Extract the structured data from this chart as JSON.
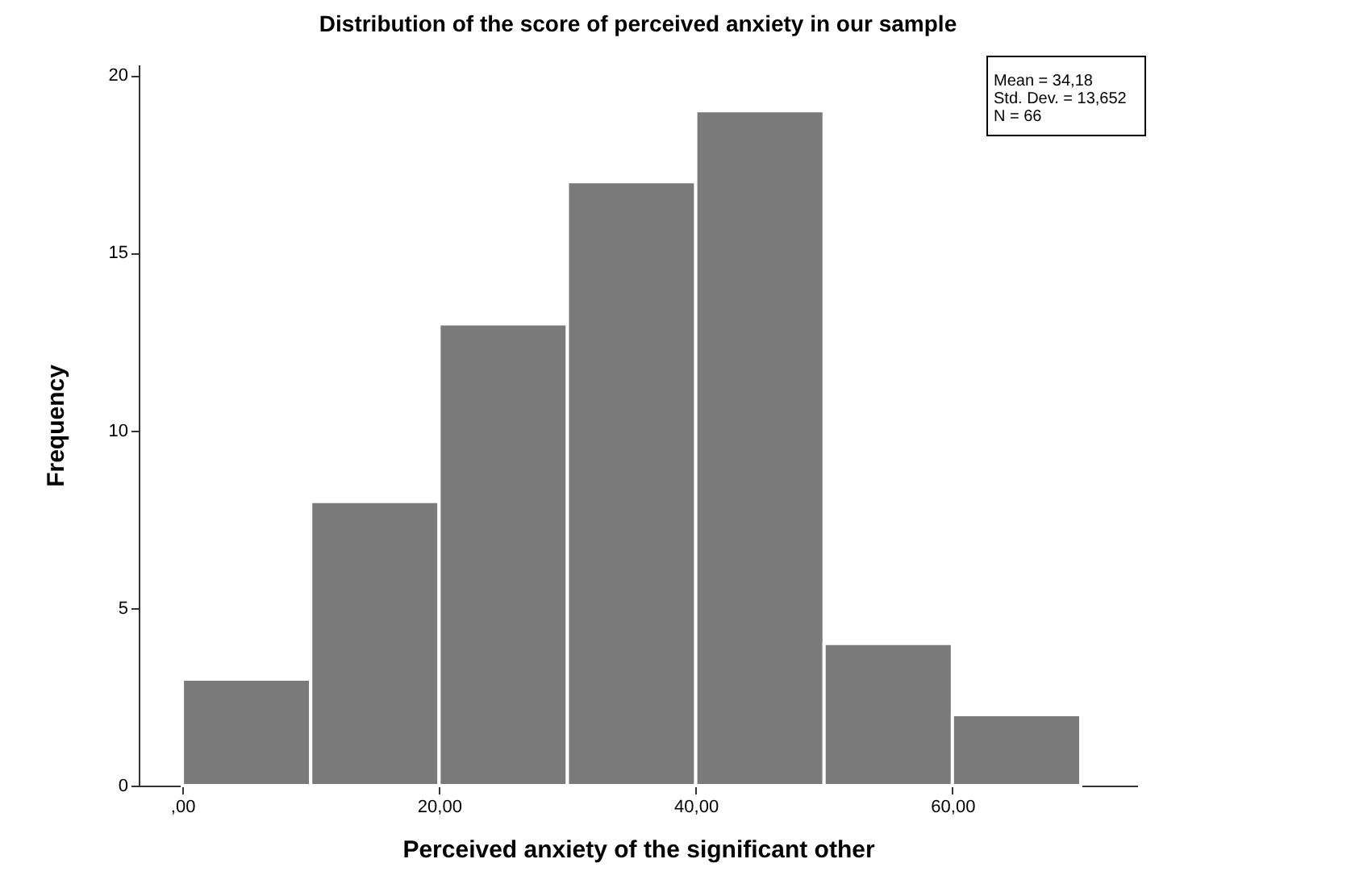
{
  "chart_data": {
    "type": "histogram",
    "title": "Distribution of the score of perceived anxiety in our sample",
    "xlabel": "Perceived anxiety of the significant other",
    "ylabel": "Frequency",
    "bins": [
      0,
      10,
      20,
      30,
      40,
      50,
      60,
      70
    ],
    "values": [
      3,
      8,
      13,
      17,
      19,
      4,
      2
    ],
    "color": "#7a7a7a",
    "xlim": [
      -3.4,
      74.4
    ],
    "xticks": [
      {
        "value": 0,
        "label": ",00"
      },
      {
        "value": 20,
        "label": "20,00"
      },
      {
        "value": 40,
        "label": "40,00"
      },
      {
        "value": 60,
        "label": "60,00"
      }
    ],
    "ylim": [
      0,
      20.3
    ],
    "yticks": [
      0,
      5,
      10,
      15,
      20
    ],
    "annotations": [
      "Mean = 34,18",
      "Std. Dev. = 13,652",
      "N = 66"
    ]
  }
}
